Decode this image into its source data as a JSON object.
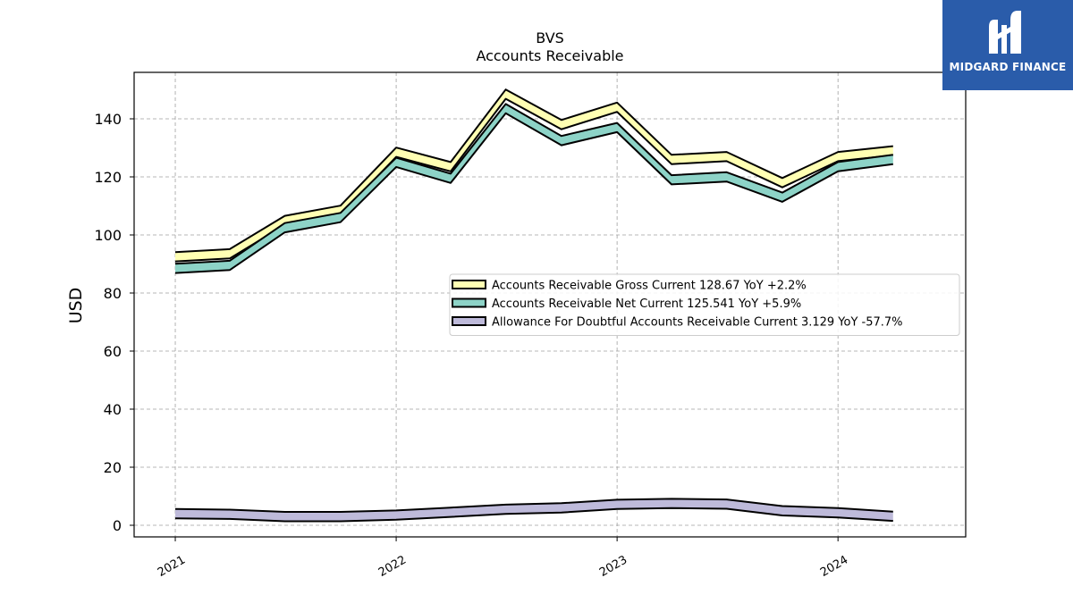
{
  "chart_data": {
    "type": "area",
    "title": "BVS",
    "subtitle": "Accounts Receivable",
    "ylabel": "USD",
    "xlabel": "",
    "ylim": [
      -4,
      156
    ],
    "yticks": [
      0,
      20,
      40,
      60,
      80,
      100,
      120,
      140
    ],
    "x_ticks": [
      "2021",
      "2022",
      "2023",
      "2024"
    ],
    "x": [
      "2021-01-01",
      "2021-04-01",
      "2021-07-01",
      "2021-10-01",
      "2022-01-01",
      "2022-04-01",
      "2022-07-01",
      "2022-10-01",
      "2023-01-01",
      "2023-04-01",
      "2023-07-01",
      "2023-10-01",
      "2024-01-01",
      "2024-04-01"
    ],
    "xlim": [
      "2020-10-25",
      "2024-07-30"
    ],
    "grid": true,
    "legend_position": "center-right",
    "series": [
      {
        "name": "Accounts Receivable Gross Current  128.67 YoY +2.2%",
        "color": "#ffffb3",
        "values": [
          92.5,
          93.5,
          105,
          108.5,
          128.5,
          123.5,
          148.5,
          138,
          144,
          126,
          127,
          118,
          127,
          129
        ]
      },
      {
        "name": "Accounts Receivable Net Current  125.541 YoY +5.9%",
        "color": "#8dd3c7",
        "values": [
          88.5,
          89.5,
          102.5,
          106,
          125,
          119.5,
          143.5,
          132.5,
          137,
          119,
          120,
          113,
          123.5,
          126
        ]
      },
      {
        "name": "Allowance For Doubtful Accounts Receivable Current  3.129 YoY -57.7%",
        "color": "#bebada",
        "values": [
          4,
          3.8,
          3,
          3,
          3.5,
          4.5,
          5.5,
          6,
          7.2,
          7.5,
          7.3,
          5,
          4.3,
          3.1
        ]
      }
    ]
  },
  "logo": {
    "text": "MIDGARD FINANCE",
    "color": "#2a5caa"
  }
}
